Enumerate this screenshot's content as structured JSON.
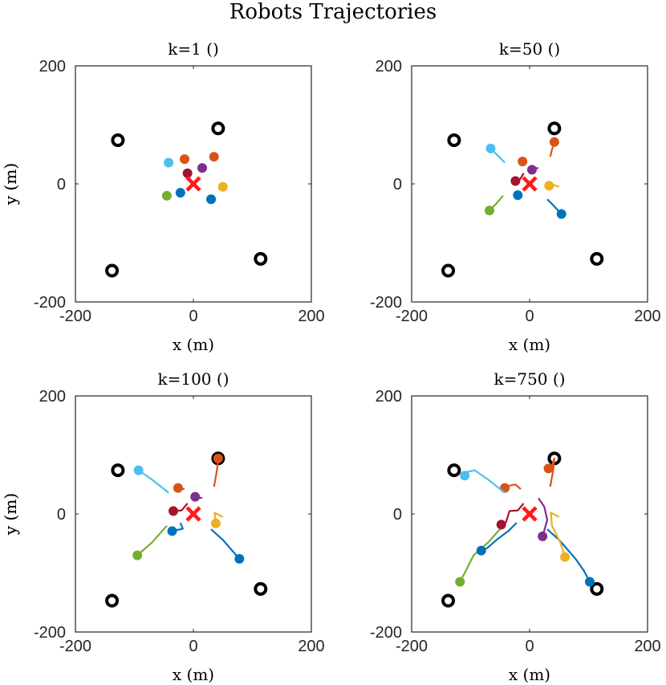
{
  "title": "Robots Trajectories",
  "colors": {
    "blue": "#0072BD",
    "orange": "#D95319",
    "yellow": "#EDB120",
    "purple": "#7E2F8E",
    "green": "#77AC30",
    "lightblue": "#4DBEEE",
    "darkred": "#A2142F",
    "target": "#FF1A1A",
    "obstacle": "#000000"
  },
  "chart_data": [
    {
      "type": "line",
      "title": "k=1 ()",
      "xlabel": "x (m)",
      "ylabel": "y (m)",
      "xlim": [
        -200,
        200
      ],
      "ylim": [
        -200,
        200
      ],
      "xticks": [
        "-200",
        "0",
        "200"
      ],
      "yticks": [
        "200",
        "0",
        "-200"
      ],
      "target": [
        0,
        0
      ],
      "obstacles": [
        [
          -128,
          74
        ],
        [
          42,
          94
        ],
        [
          -138,
          -147
        ],
        [
          114,
          -127
        ]
      ],
      "robots": [
        {
          "color": "blue",
          "path": [
            [
              30,
              -26
            ]
          ]
        },
        {
          "color": "orange",
          "path": [
            [
              35,
              46
            ]
          ]
        },
        {
          "color": "orange",
          "path": [
            [
              -15,
              42
            ]
          ]
        },
        {
          "color": "yellow",
          "path": [
            [
              50,
              -5
            ]
          ]
        },
        {
          "color": "purple",
          "path": [
            [
              15,
              27
            ]
          ]
        },
        {
          "color": "green",
          "path": [
            [
              -45,
              -20
            ]
          ]
        },
        {
          "color": "lightblue",
          "path": [
            [
              -42,
              36
            ]
          ]
        },
        {
          "color": "darkred",
          "path": [
            [
              -10,
              18
            ]
          ]
        },
        {
          "color": "blue",
          "path": [
            [
              -22,
              -15
            ]
          ]
        }
      ]
    },
    {
      "type": "line",
      "title": "k=50 ()",
      "xlabel": "x (m)",
      "ylabel": "y (m)",
      "xlim": [
        -200,
        200
      ],
      "ylim": [
        -200,
        200
      ],
      "xticks": [
        "-200",
        "0",
        "200"
      ],
      "yticks": [
        "200",
        "0",
        "-200"
      ],
      "target": [
        0,
        0
      ],
      "obstacles": [
        [
          -128,
          74
        ],
        [
          42,
          94
        ],
        [
          -138,
          -147
        ],
        [
          114,
          -127
        ]
      ],
      "robots": [
        {
          "color": "blue",
          "path": [
            [
              30,
              -26
            ],
            [
              40,
              -36
            ],
            [
              54,
              -51
            ]
          ]
        },
        {
          "color": "orange",
          "path": [
            [
              35,
              46
            ],
            [
              38,
              58
            ],
            [
              42,
              71
            ]
          ]
        },
        {
          "color": "orange",
          "path": [
            [
              -15,
              42
            ],
            [
              -13,
              40
            ],
            [
              -12,
              38
            ]
          ]
        },
        {
          "color": "yellow",
          "path": [
            [
              50,
              -5
            ],
            [
              42,
              -2
            ],
            [
              33,
              -3
            ]
          ]
        },
        {
          "color": "purple",
          "path": [
            [
              15,
              27
            ],
            [
              8,
              26
            ],
            [
              4,
              24
            ]
          ]
        },
        {
          "color": "green",
          "path": [
            [
              -45,
              -20
            ],
            [
              -56,
              -33
            ],
            [
              -68,
              -45
            ]
          ]
        },
        {
          "color": "lightblue",
          "path": [
            [
              -42,
              36
            ],
            [
              -54,
              48
            ],
            [
              -66,
              60
            ]
          ]
        },
        {
          "color": "darkred",
          "path": [
            [
              -10,
              18
            ],
            [
              -16,
              8
            ],
            [
              -24,
              5
            ]
          ]
        },
        {
          "color": "blue",
          "path": [
            [
              -22,
              -15
            ],
            [
              -17,
              -20
            ],
            [
              -20,
              -19
            ]
          ]
        }
      ]
    },
    {
      "type": "line",
      "title": "k=100 ()",
      "xlabel": "x (m)",
      "ylabel": "y (m)",
      "xlim": [
        -200,
        200
      ],
      "ylim": [
        -200,
        200
      ],
      "xticks": [
        "-200",
        "0",
        "200"
      ],
      "yticks": [
        "200",
        "0",
        "-200"
      ],
      "target": [
        0,
        0
      ],
      "obstacles": [
        [
          -128,
          74
        ],
        [
          42,
          94
        ],
        [
          -138,
          -147
        ],
        [
          114,
          -127
        ]
      ],
      "robots": [
        {
          "color": "blue",
          "path": [
            [
              30,
              -26
            ],
            [
              50,
              -44
            ],
            [
              78,
              -76
            ]
          ]
        },
        {
          "color": "orange",
          "path": [
            [
              35,
              46
            ],
            [
              40,
              74
            ],
            [
              42,
              94
            ]
          ]
        },
        {
          "color": "orange",
          "path": [
            [
              -15,
              42
            ],
            [
              -20,
              43
            ],
            [
              -26,
              44
            ]
          ]
        },
        {
          "color": "yellow",
          "path": [
            [
              50,
              -5
            ],
            [
              36,
              2
            ],
            [
              38,
              -16
            ]
          ]
        },
        {
          "color": "purple",
          "path": [
            [
              15,
              27
            ],
            [
              8,
              28
            ],
            [
              3,
              29
            ]
          ]
        },
        {
          "color": "green",
          "path": [
            [
              -45,
              -20
            ],
            [
              -70,
              -48
            ],
            [
              -95,
              -70
            ]
          ]
        },
        {
          "color": "lightblue",
          "path": [
            [
              -42,
              36
            ],
            [
              -70,
              58
            ],
            [
              -93,
              74
            ]
          ]
        },
        {
          "color": "darkred",
          "path": [
            [
              -10,
              18
            ],
            [
              -20,
              6
            ],
            [
              -34,
              5
            ]
          ]
        },
        {
          "color": "blue",
          "path": [
            [
              -22,
              -15
            ],
            [
              -18,
              -25
            ],
            [
              -36,
              -29
            ]
          ]
        }
      ]
    },
    {
      "type": "line",
      "title": "k=750 ()",
      "xlabel": "x (m)",
      "ylabel": "y (m)",
      "xlim": [
        -200,
        200
      ],
      "ylim": [
        -200,
        200
      ],
      "xticks": [
        "-200",
        "0",
        "200"
      ],
      "yticks": [
        "200",
        "0",
        "-200"
      ],
      "target": [
        0,
        0
      ],
      "obstacles": [
        [
          -128,
          74
        ],
        [
          42,
          94
        ],
        [
          -138,
          -147
        ],
        [
          114,
          -127
        ]
      ],
      "robots": [
        {
          "color": "blue",
          "path": [
            [
              30,
              -26
            ],
            [
              50,
              -44
            ],
            [
              78,
              -76
            ],
            [
              92,
              -96
            ],
            [
              102,
              -115
            ]
          ]
        },
        {
          "color": "orange",
          "path": [
            [
              35,
              46
            ],
            [
              40,
              74
            ],
            [
              42,
              94
            ],
            [
              38,
              82
            ],
            [
              32,
              77
            ]
          ]
        },
        {
          "color": "orange",
          "path": [
            [
              -15,
              42
            ],
            [
              -24,
              50
            ],
            [
              -34,
              48
            ],
            [
              -42,
              44
            ]
          ]
        },
        {
          "color": "yellow",
          "path": [
            [
              50,
              -5
            ],
            [
              36,
              2
            ],
            [
              38,
              -20
            ],
            [
              52,
              -48
            ],
            [
              60,
              -73
            ]
          ]
        },
        {
          "color": "purple",
          "path": [
            [
              15,
              27
            ],
            [
              25,
              12
            ],
            [
              30,
              -10
            ],
            [
              22,
              -38
            ]
          ]
        },
        {
          "color": "green",
          "path": [
            [
              -45,
              -20
            ],
            [
              -70,
              -48
            ],
            [
              -95,
              -70
            ],
            [
              -110,
              -100
            ],
            [
              -118,
              -115
            ]
          ]
        },
        {
          "color": "lightblue",
          "path": [
            [
              -42,
              36
            ],
            [
              -70,
              58
            ],
            [
              -93,
              74
            ],
            [
              -110,
              70
            ],
            [
              -110,
              65
            ]
          ]
        },
        {
          "color": "darkred",
          "path": [
            [
              -10,
              18
            ],
            [
              -20,
              6
            ],
            [
              -34,
              5
            ],
            [
              -40,
              -14
            ],
            [
              -48,
              -18
            ]
          ]
        },
        {
          "color": "blue",
          "path": [
            [
              -22,
              -15
            ],
            [
              -36,
              -29
            ],
            [
              -56,
              -44
            ],
            [
              -72,
              -58
            ],
            [
              -82,
              -62
            ]
          ]
        }
      ]
    }
  ]
}
